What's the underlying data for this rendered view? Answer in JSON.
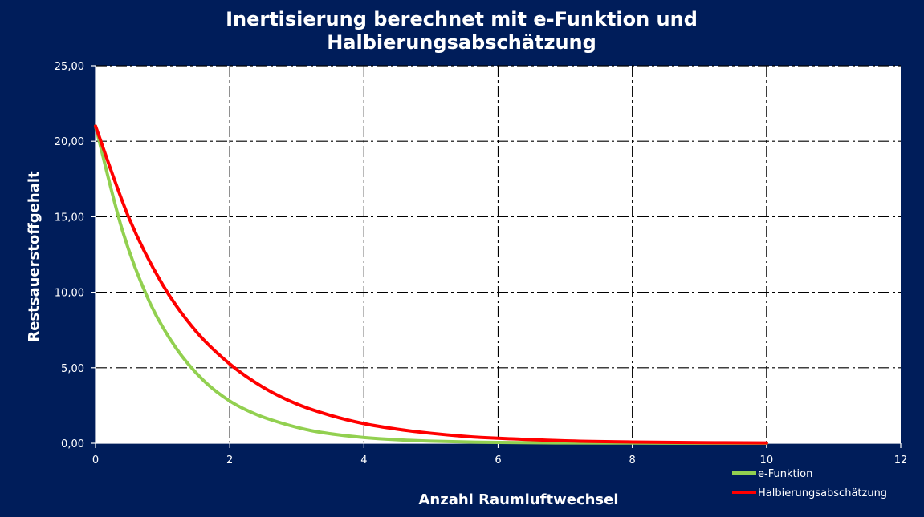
{
  "chart_data": {
    "type": "line",
    "title_lines": [
      "Inertisierung berechnet mit e-Funktion und",
      "Halbierungsabschätzung"
    ],
    "xlabel": "Anzahl Raumluftwechsel",
    "ylabel": "Restsauerstoffgehalt",
    "xlim": [
      0,
      12
    ],
    "ylim": [
      0,
      25
    ],
    "x_ticks": [
      0,
      2,
      4,
      6,
      8,
      10,
      12
    ],
    "x_tick_labels": [
      "0",
      "2",
      "4",
      "6",
      "8",
      "10",
      "12"
    ],
    "y_ticks": [
      0,
      5,
      10,
      15,
      20,
      25
    ],
    "y_tick_labels": [
      "0,00",
      "5,00",
      "10,00",
      "15,00",
      "20,00",
      "25,00"
    ],
    "grid": true,
    "legend_position": "bottom-right",
    "series": [
      {
        "name": "e-Funktion",
        "color": "#92d050",
        "x": [
          0,
          0.4,
          0.8,
          1.2,
          1.6,
          2.0,
          2.4,
          2.8,
          3.2,
          3.6,
          4.0,
          4.5,
          5.0,
          6.0,
          7.0,
          8.0,
          9.0,
          10.0
        ],
        "y": [
          21.0,
          14.1,
          9.4,
          6.3,
          4.2,
          2.8,
          1.9,
          1.3,
          0.85,
          0.57,
          0.38,
          0.23,
          0.14,
          0.05,
          0.02,
          0.01,
          0.0,
          0.0
        ]
      },
      {
        "name": "Halbierungsabschätzung",
        "color": "#ff0000",
        "x": [
          0,
          0.5,
          1.0,
          1.5,
          2.0,
          2.5,
          3.0,
          3.5,
          4.0,
          4.5,
          5.0,
          5.5,
          6.0,
          7.0,
          8.0,
          9.0,
          10.0
        ],
        "y": [
          21.0,
          14.9,
          10.5,
          7.4,
          5.25,
          3.7,
          2.6,
          1.85,
          1.3,
          0.93,
          0.66,
          0.46,
          0.33,
          0.16,
          0.08,
          0.04,
          0.02
        ]
      }
    ]
  }
}
